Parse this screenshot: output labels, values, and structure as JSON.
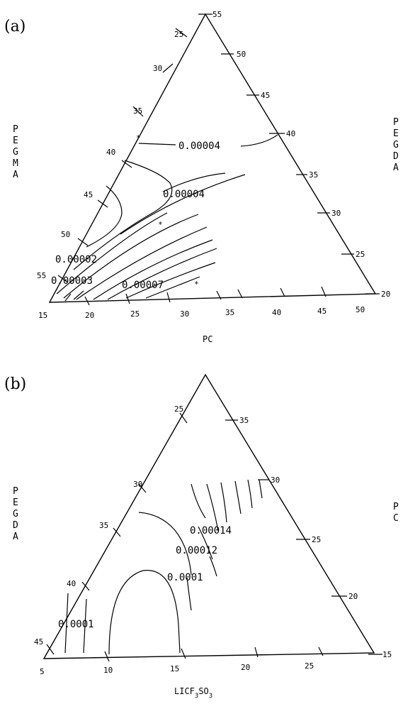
{
  "chart_data": [
    {
      "type": "ternary-contour",
      "panel_label": "(a)",
      "axes": {
        "bottom": {
          "label": "PC",
          "ticks": [
            "15",
            "20",
            "25",
            "30",
            "35",
            "40",
            "45",
            "50"
          ]
        },
        "left": {
          "label": "PEGMA",
          "ticks": [
            "25",
            "30",
            "35",
            "40",
            "45",
            "50",
            "55"
          ]
        },
        "right": {
          "label": "PEGDA",
          "ticks": [
            "55",
            "50",
            "45",
            "40",
            "35",
            "30",
            "25",
            "20"
          ]
        }
      },
      "contour_labels": [
        "0.00004",
        "0.00004",
        "0.00002",
        "0.00003",
        "0.00007"
      ],
      "markers": 3
    },
    {
      "type": "ternary-contour",
      "panel_label": "(b)",
      "axes": {
        "bottom": {
          "label_main": "LICF",
          "label_sub1": "3",
          "label_mid": "SO",
          "label_sub2": "3",
          "ticks": [
            "5",
            "10",
            "15",
            "20",
            "25"
          ]
        },
        "left": {
          "label": "PEGDA",
          "ticks": [
            "25",
            "30",
            "35",
            "40",
            "45"
          ]
        },
        "right": {
          "label": "PC",
          "ticks": [
            "35",
            "30",
            "25",
            "20",
            "15"
          ]
        }
      },
      "contour_labels": [
        "0.00014",
        "0.00012",
        "0.0001",
        "0.0001"
      ]
    }
  ]
}
